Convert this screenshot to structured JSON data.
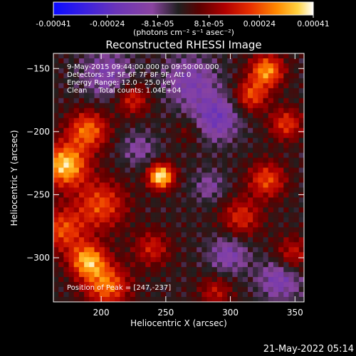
{
  "chart_data": {
    "type": "heatmap",
    "title": "Reconstructed RHESSI Image",
    "colorbar": {
      "ticks": [
        "-0.00041",
        "-0.00024",
        "-8.1e-05",
        "8.1e-05",
        "0.00024",
        "0.00041"
      ],
      "tick_values": [
        -0.00041,
        -0.00024,
        -8.1e-05,
        8.1e-05,
        0.00024,
        0.00041
      ],
      "range": [
        -0.00041,
        0.00041
      ],
      "units": "(photons cm⁻² s⁻¹ asec⁻²)"
    },
    "xlabel": "Heliocentric X (arcsec)",
    "ylabel": "Heliocentric Y (arcsec)",
    "xlim": [
      163,
      357
    ],
    "ylim": [
      -335,
      -138
    ],
    "x_ticks": [
      200,
      250,
      300,
      350
    ],
    "y_ticks": [
      -150,
      -200,
      -250,
      -300
    ],
    "annotations": [
      "9-May-2015 09:44:00.000 to 09:50:00.000",
      "Detectors: 3F 5F 6F 7F 8F 9F, Att 0",
      "Energy Range: 12.0 - 25.0 keV",
      "Clean     Total counts: 1.04E+04"
    ],
    "peak_label": "Position of Peak = [247,-237]",
    "peak": [
      247,
      -237
    ],
    "sources": [
      {
        "x": 247,
        "y": -237,
        "amp": 1.0,
        "sigma": 7
      },
      {
        "x": 172,
        "y": -228,
        "amp": 0.9,
        "sigma": 12
      },
      {
        "x": 190,
        "y": -200,
        "amp": 0.65,
        "sigma": 11
      },
      {
        "x": 200,
        "y": -260,
        "amp": 0.55,
        "sigma": 14
      },
      {
        "x": 190,
        "y": -305,
        "amp": 0.8,
        "sigma": 10
      },
      {
        "x": 205,
        "y": -325,
        "amp": 0.65,
        "sigma": 12
      },
      {
        "x": 170,
        "y": -280,
        "amp": 0.55,
        "sigma": 12
      },
      {
        "x": 225,
        "y": -175,
        "amp": 0.45,
        "sigma": 9
      },
      {
        "x": 240,
        "y": -295,
        "amp": 0.4,
        "sigma": 10
      },
      {
        "x": 330,
        "y": -152,
        "amp": 0.75,
        "sigma": 9
      },
      {
        "x": 318,
        "y": -172,
        "amp": 0.55,
        "sigma": 9
      },
      {
        "x": 345,
        "y": -195,
        "amp": 0.5,
        "sigma": 9
      },
      {
        "x": 330,
        "y": -240,
        "amp": 0.55,
        "sigma": 10
      },
      {
        "x": 310,
        "y": -270,
        "amp": 0.45,
        "sigma": 11
      },
      {
        "x": 350,
        "y": -300,
        "amp": 0.4,
        "sigma": 10
      },
      {
        "x": 290,
        "y": -330,
        "amp": 0.35,
        "sigma": 9
      },
      {
        "x": 270,
        "y": -200,
        "amp": 0.2,
        "sigma": 8
      }
    ],
    "negatives": [
      {
        "x": 290,
        "y": -190,
        "amp": 0.45,
        "sigma": 13
      },
      {
        "x": 270,
        "y": -160,
        "amp": 0.35,
        "sigma": 15
      },
      {
        "x": 340,
        "y": -320,
        "amp": 0.4,
        "sigma": 12
      },
      {
        "x": 300,
        "y": -300,
        "amp": 0.35,
        "sigma": 11
      },
      {
        "x": 230,
        "y": -215,
        "amp": 0.25,
        "sigma": 10
      },
      {
        "x": 205,
        "y": -155,
        "amp": 0.35,
        "sigma": 14
      },
      {
        "x": 285,
        "y": -245,
        "amp": 0.25,
        "sigma": 9
      }
    ]
  },
  "timestamp": "21-May-2022 05:14"
}
